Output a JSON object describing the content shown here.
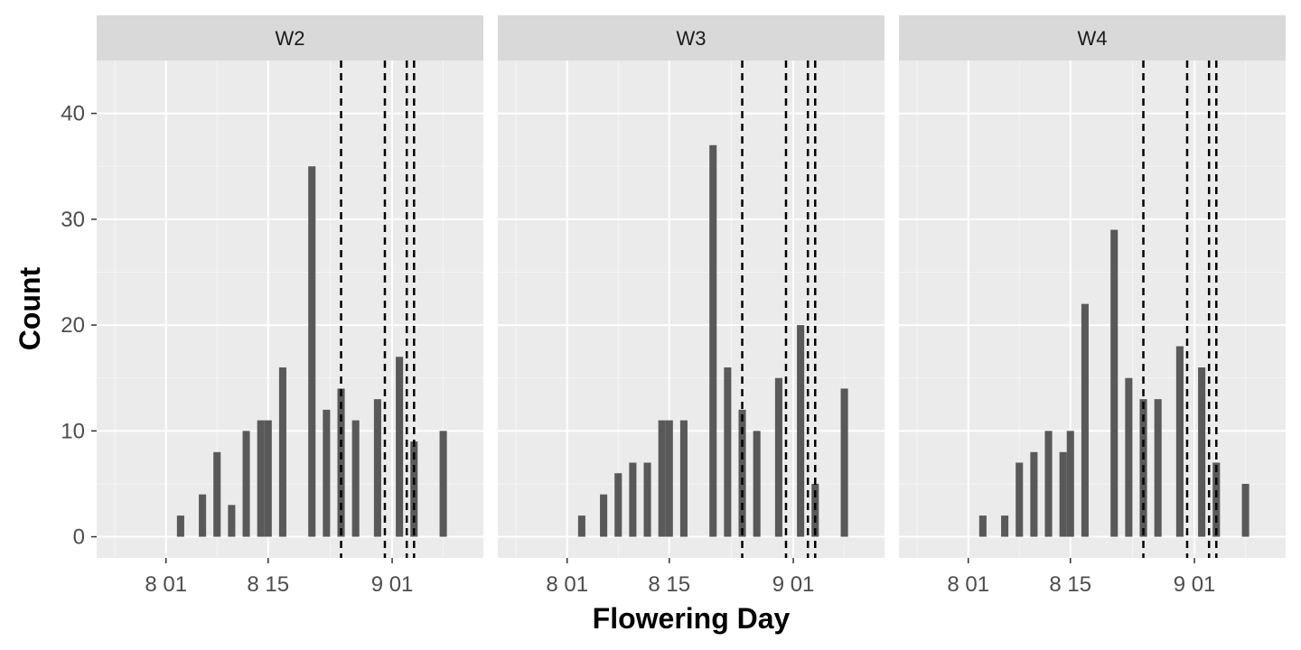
{
  "chart_data": {
    "type": "bar",
    "xlabel": "Flowering Day",
    "ylabel": "Count",
    "ylim": [
      -2,
      45
    ],
    "y_ticks": [
      0,
      10,
      20,
      30,
      40
    ],
    "x_range_day": [
      -9.5,
      43.5
    ],
    "x_ticks": [
      {
        "day": 0,
        "label": "8 01"
      },
      {
        "day": 14,
        "label": "8 15"
      },
      {
        "day": 31,
        "label": "9 01"
      }
    ],
    "grid": true,
    "bar_width_days": 1,
    "colors": {
      "panel_bg": "#ebebeb",
      "strip_bg": "#d9d9d9",
      "bar": "#595959",
      "grid_major": "#ffffff",
      "vline": "#000000"
    },
    "panels": [
      {
        "name": "W2",
        "bars": [
          {
            "day": 2,
            "count": 2
          },
          {
            "day": 5,
            "count": 4
          },
          {
            "day": 7,
            "count": 8
          },
          {
            "day": 9,
            "count": 3
          },
          {
            "day": 11,
            "count": 10
          },
          {
            "day": 13,
            "count": 11
          },
          {
            "day": 14,
            "count": 11
          },
          {
            "day": 16,
            "count": 16
          },
          {
            "day": 20,
            "count": 35
          },
          {
            "day": 22,
            "count": 12
          },
          {
            "day": 24,
            "count": 14
          },
          {
            "day": 26,
            "count": 11
          },
          {
            "day": 29,
            "count": 13
          },
          {
            "day": 32,
            "count": 17
          },
          {
            "day": 34,
            "count": 9
          },
          {
            "day": 38,
            "count": 10
          }
        ],
        "vlines": [
          24,
          30,
          33,
          34
        ]
      },
      {
        "name": "W3",
        "bars": [
          {
            "day": 2,
            "count": 2
          },
          {
            "day": 5,
            "count": 4
          },
          {
            "day": 7,
            "count": 6
          },
          {
            "day": 9,
            "count": 7
          },
          {
            "day": 11,
            "count": 7
          },
          {
            "day": 13,
            "count": 11
          },
          {
            "day": 14,
            "count": 11
          },
          {
            "day": 16,
            "count": 11
          },
          {
            "day": 20,
            "count": 37
          },
          {
            "day": 22,
            "count": 16
          },
          {
            "day": 24,
            "count": 12
          },
          {
            "day": 26,
            "count": 10
          },
          {
            "day": 29,
            "count": 15
          },
          {
            "day": 32,
            "count": 20
          },
          {
            "day": 34,
            "count": 5
          },
          {
            "day": 38,
            "count": 14
          }
        ],
        "vlines": [
          24,
          30,
          33,
          34
        ]
      },
      {
        "name": "W4",
        "bars": [
          {
            "day": 2,
            "count": 2
          },
          {
            "day": 5,
            "count": 2
          },
          {
            "day": 7,
            "count": 7
          },
          {
            "day": 9,
            "count": 8
          },
          {
            "day": 11,
            "count": 10
          },
          {
            "day": 13,
            "count": 8
          },
          {
            "day": 14,
            "count": 10
          },
          {
            "day": 16,
            "count": 22
          },
          {
            "day": 20,
            "count": 29
          },
          {
            "day": 22,
            "count": 15
          },
          {
            "day": 24,
            "count": 13
          },
          {
            "day": 26,
            "count": 13
          },
          {
            "day": 29,
            "count": 18
          },
          {
            "day": 32,
            "count": 16
          },
          {
            "day": 34,
            "count": 7
          },
          {
            "day": 38,
            "count": 5
          }
        ],
        "vlines": [
          24,
          30,
          33,
          34
        ]
      }
    ]
  }
}
